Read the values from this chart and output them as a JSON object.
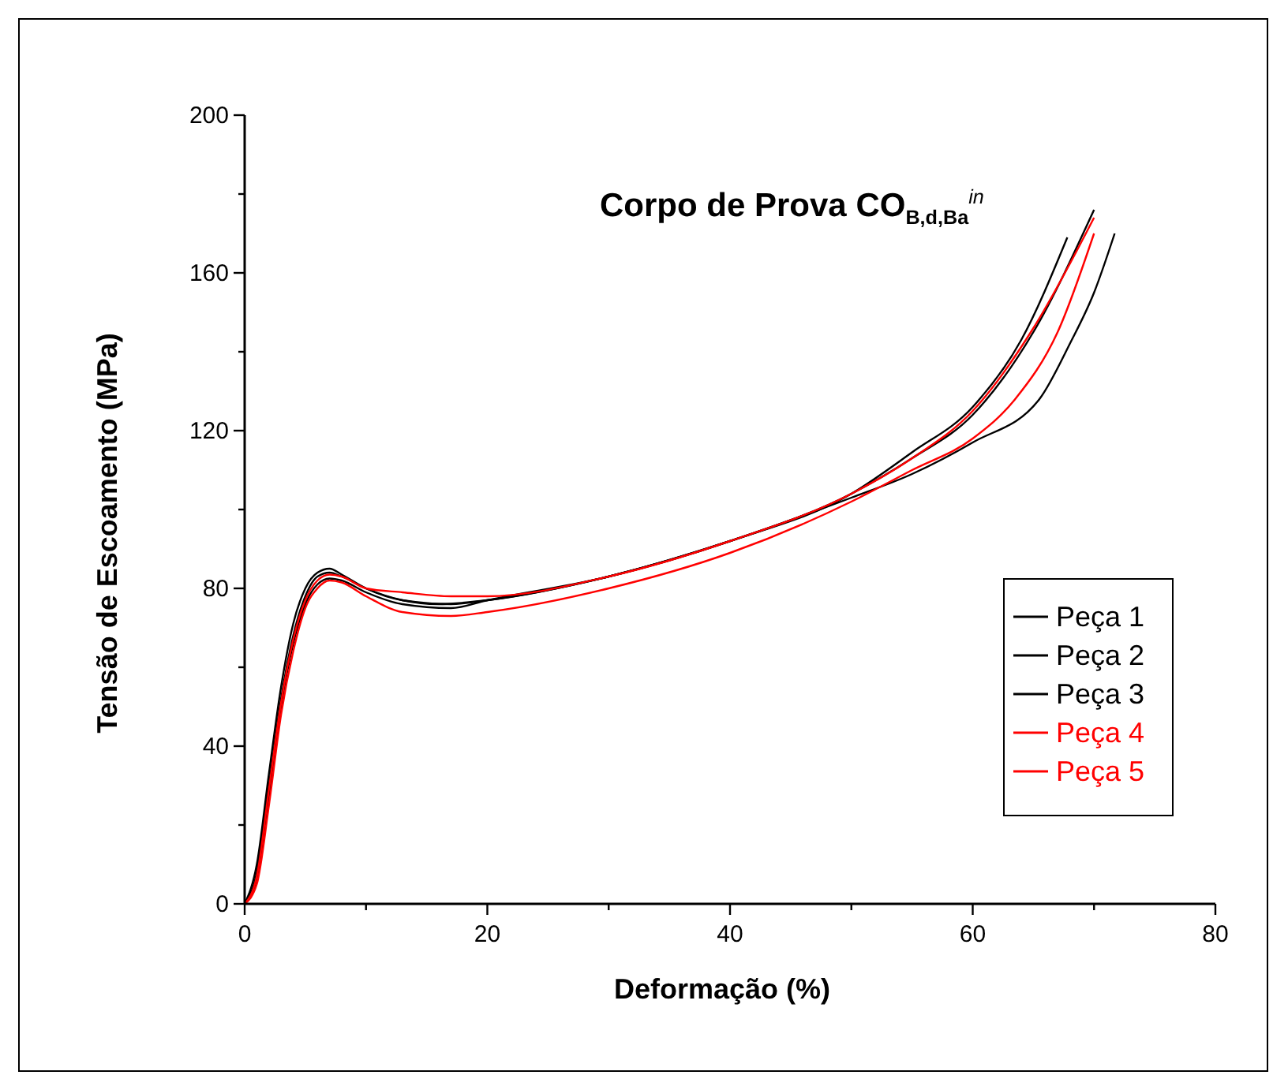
{
  "chart_data": {
    "type": "line",
    "title": "Corpo de Prova CO$_{B,d,Ba}$$^{in}$",
    "xlabel": "Deformação (%)",
    "ylabel": "Tensão de Escoamento (MPa)",
    "xlim": [
      0,
      80
    ],
    "ylim": [
      0,
      200
    ],
    "xticks": [
      0,
      {
        "value": 10,
        "label": null
      },
      20,
      {
        "value": 30,
        "label": null
      },
      40,
      {
        "value": 50,
        "label": null
      },
      60,
      {
        "value": 70,
        "label": null
      },
      80
    ],
    "yticks": [
      0,
      {
        "value": 20,
        "label": null
      },
      40,
      {
        "value": 60,
        "label": null
      },
      80,
      {
        "value": 100,
        "label": null
      },
      120,
      {
        "value": 140,
        "label": null
      },
      160,
      {
        "value": 180,
        "label": null
      },
      200
    ],
    "grid": false,
    "legend": "right",
    "marker": "none",
    "line_style": "solid",
    "series": [
      {
        "name": "Peça 1",
        "color": "#000000",
        "x": [
          0,
          1,
          2,
          3,
          4,
          5,
          6,
          7,
          8,
          10,
          13,
          16,
          20,
          30,
          40,
          50,
          55,
          60,
          64,
          67.8
        ],
        "values": [
          0,
          8,
          30,
          52,
          68,
          78,
          83,
          84,
          83,
          80,
          77,
          76,
          77,
          83,
          92,
          104,
          114.5,
          126,
          143,
          169
        ]
      },
      {
        "name": "Peça 2",
        "color": "#000000",
        "x": [
          0,
          1,
          2,
          3,
          4,
          5,
          6,
          7,
          8,
          10,
          13,
          17,
          20,
          30,
          40,
          50,
          55,
          60,
          65,
          70
        ],
        "values": [
          0,
          10,
          33,
          55,
          71,
          80,
          84,
          85,
          83.5,
          80,
          77,
          76,
          77,
          83,
          92,
          104,
          113,
          124,
          145,
          176
        ]
      },
      {
        "name": "Peça 3",
        "color": "#000000",
        "x": [
          0,
          1,
          2,
          3,
          4,
          5,
          6,
          7,
          8,
          10,
          13,
          17,
          20,
          30,
          40,
          50,
          55,
          60,
          65.5,
          68,
          70,
          71.7
        ],
        "values": [
          0,
          6,
          27,
          50,
          66,
          76,
          81,
          82.5,
          82,
          79,
          76,
          75,
          77,
          83,
          92,
          103,
          109,
          117,
          128,
          142,
          155,
          170
        ]
      },
      {
        "name": "Peça 4",
        "color": "#ff0000",
        "x": [
          0,
          1,
          2,
          3,
          4,
          5,
          6,
          7,
          8,
          10,
          13,
          17,
          20,
          30,
          40,
          50,
          55,
          60,
          65,
          70
        ],
        "values": [
          0,
          7,
          29,
          51,
          67,
          77,
          82,
          83.5,
          83,
          80,
          79,
          78,
          78,
          83,
          92,
          104,
          113,
          125,
          146,
          174
        ]
      },
      {
        "name": "Peça 5",
        "color": "#ff0000",
        "x": [
          0,
          1,
          2,
          3,
          4,
          5,
          6,
          7,
          8,
          10,
          13,
          17,
          20,
          30,
          40,
          50,
          55,
          60,
          63.5,
          67,
          70
        ],
        "values": [
          0,
          5,
          25,
          48,
          64,
          75,
          80,
          82,
          81.5,
          78,
          74,
          73,
          74,
          80,
          89,
          102,
          110,
          118,
          128,
          145,
          170
        ]
      }
    ]
  }
}
